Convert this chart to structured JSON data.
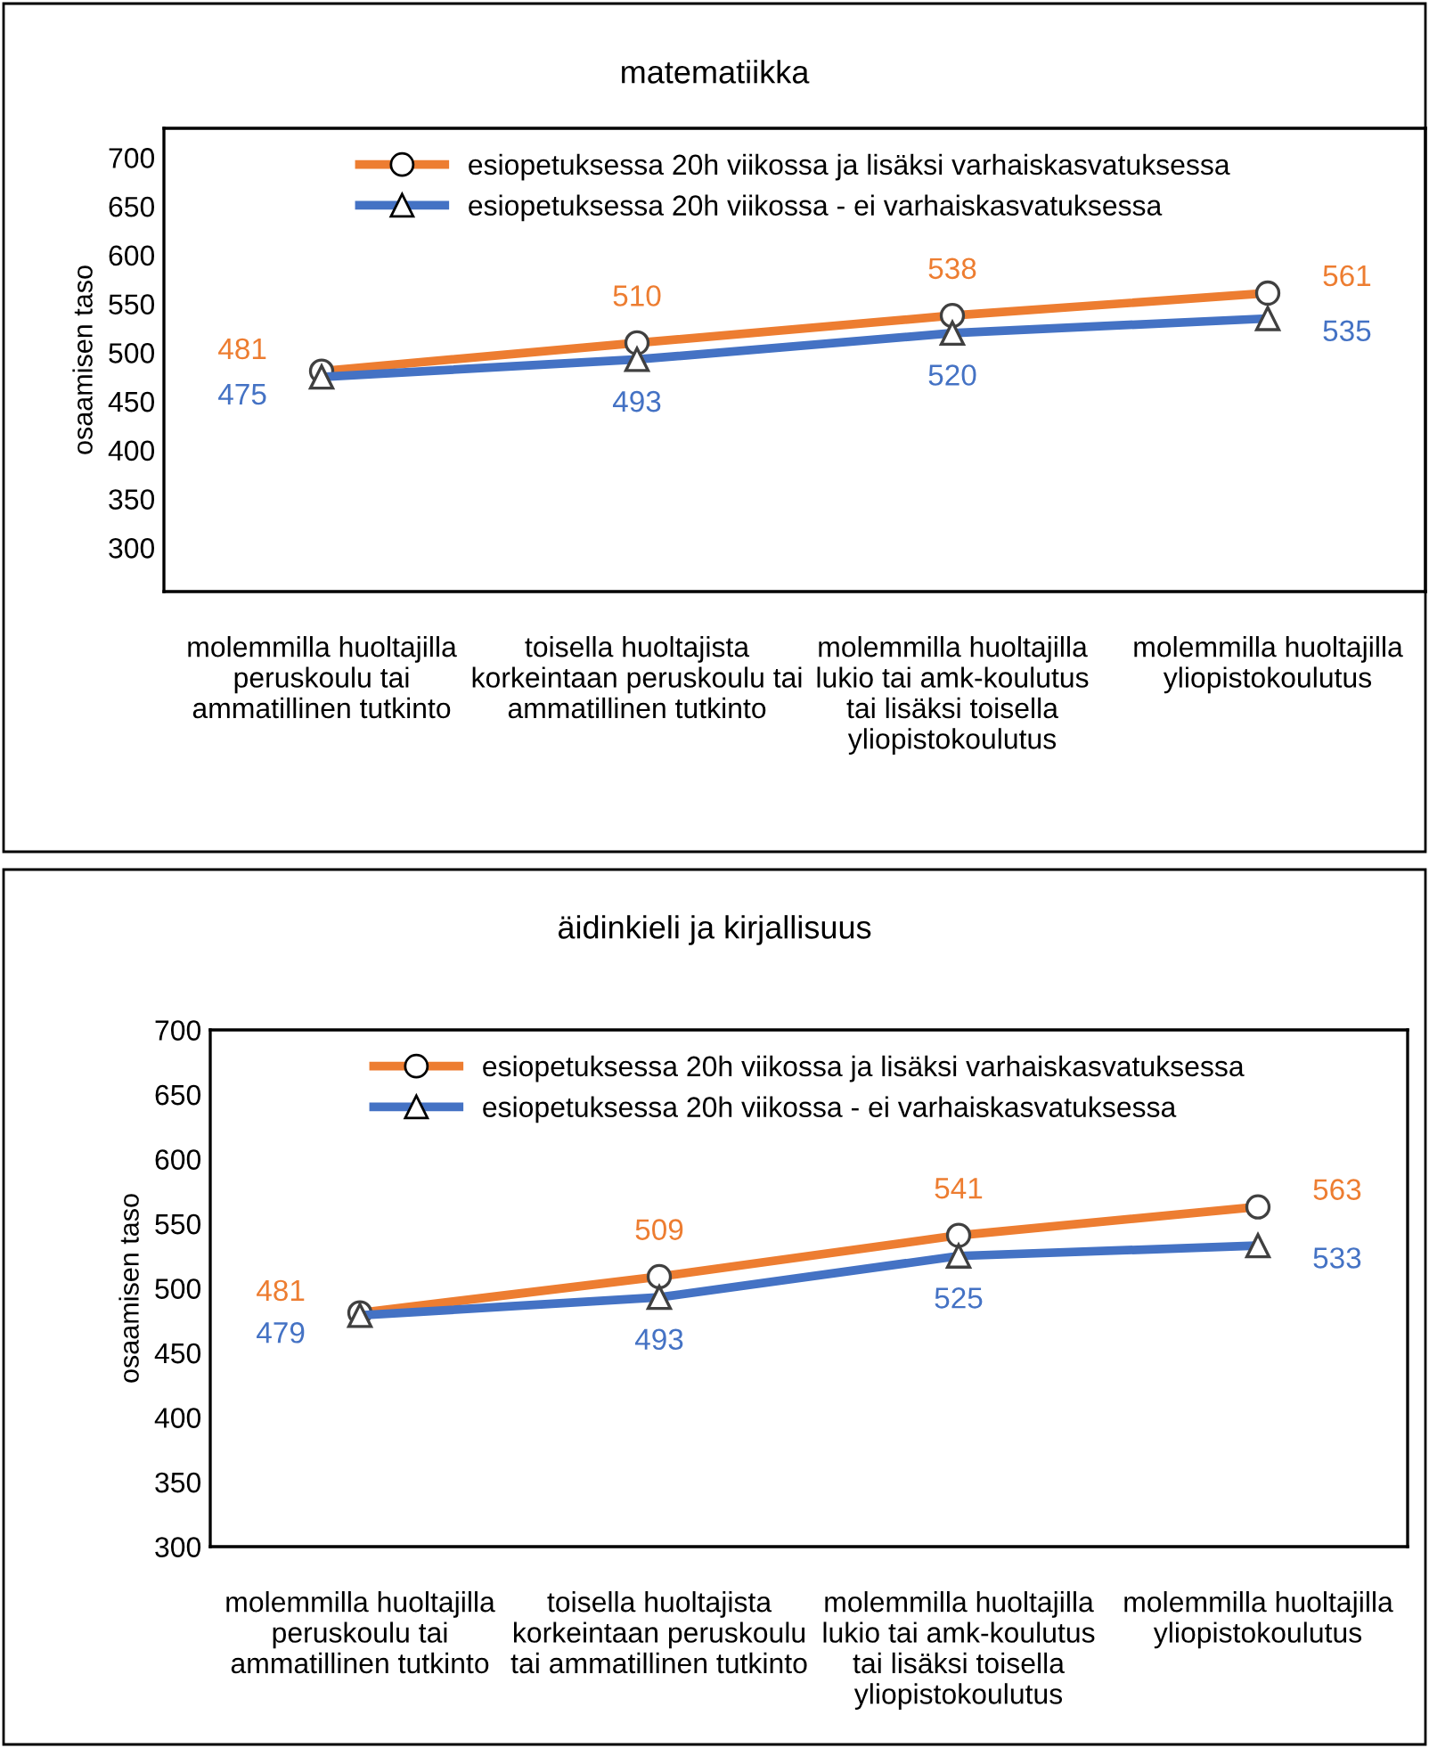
{
  "chart_data": [
    {
      "type": "line",
      "title": "matematiikka",
      "ylabel": "osaamisen taso",
      "categories": [
        "molemmilla huoltajilla\nperuskoulu tai\nammatillinen tutkinto",
        "toisella huoltajista\nkorkeintaan peruskoulu tai\nammatillinen tutkinto",
        "molemmilla huoltajilla\nlukio tai amk-koulutus\ntai lisäksi toisella\nyliopistokoulutus",
        "molemmilla huoltajilla\nyliopistokoulutus"
      ],
      "series": [
        {
          "name": "esiopetuksessa 20h viikossa ja lisäksi varhaiskasvatuksessa",
          "color": "#ed7d31",
          "marker": "circle",
          "values": [
            481,
            510,
            538,
            561
          ]
        },
        {
          "name": "esiopetuksessa 20h viikossa - ei varhaiskasvatuksessa",
          "color": "#4472c4",
          "marker": "triangle",
          "values": [
            475,
            493,
            520,
            535
          ]
        }
      ],
      "ylim": [
        255,
        730
      ],
      "yticks": [
        300,
        350,
        400,
        450,
        500,
        550,
        600,
        650,
        700
      ],
      "grid": false,
      "legend": "top",
      "data_labels": true
    },
    {
      "type": "line",
      "title": "äidinkieli ja kirjallisuus",
      "ylabel": "osaamisen taso",
      "categories": [
        "molemmilla huoltajilla\nperuskoulu tai\nammatillinen tutkinto",
        "toisella huoltajista\nkorkeintaan peruskoulu\ntai ammatillinen tutkinto",
        "molemmilla huoltajilla\nlukio tai amk-koulutus\ntai lisäksi toisella\nyliopistokoulutus",
        "molemmilla huoltajilla\nyliopistokoulutus"
      ],
      "series": [
        {
          "name": "esiopetuksessa 20h viikossa ja lisäksi varhaiskasvatuksessa",
          "color": "#ed7d31",
          "marker": "circle",
          "values": [
            481,
            509,
            541,
            563
          ]
        },
        {
          "name": "esiopetuksessa 20h viikossa - ei varhaiskasvatuksessa",
          "color": "#4472c4",
          "marker": "triangle",
          "values": [
            479,
            493,
            525,
            533
          ]
        }
      ],
      "ylim": [
        300,
        700
      ],
      "yticks": [
        300,
        350,
        400,
        450,
        500,
        550,
        600,
        650,
        700
      ],
      "grid": false,
      "legend": "top",
      "data_labels": true
    }
  ]
}
